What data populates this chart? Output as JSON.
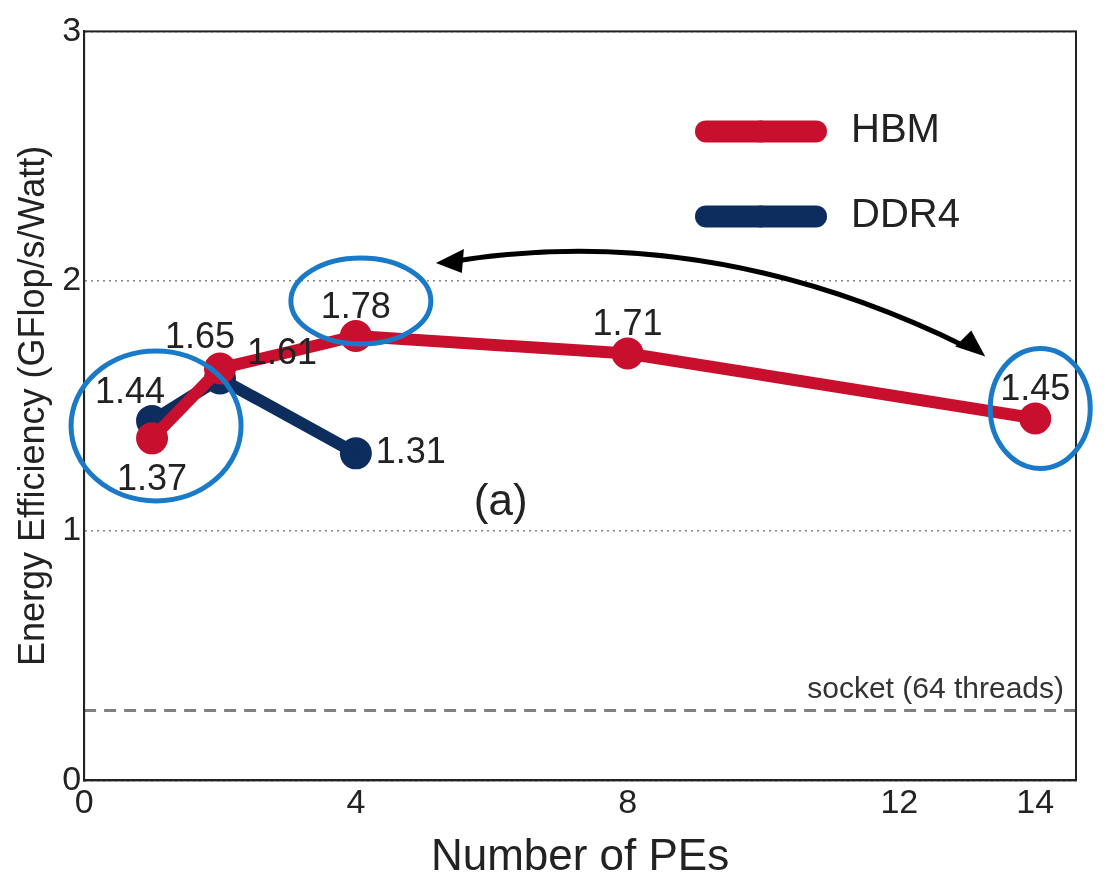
{
  "chart_data": {
    "type": "line",
    "xlabel": "Number of PEs",
    "ylabel": "Energy Efficiency (GFlop/s/Watt)",
    "xlim": [
      0,
      14.6
    ],
    "xticks": [
      0,
      4,
      8,
      12,
      14
    ],
    "ylim": [
      0,
      3
    ],
    "yticks": [
      0,
      1,
      2,
      3
    ],
    "series": [
      {
        "name": "HBM",
        "color": "#c8102e",
        "x": [
          1,
          2,
          4,
          8,
          14
        ],
        "values": [
          1.37,
          1.65,
          1.78,
          1.71,
          1.45
        ]
      },
      {
        "name": "DDR4",
        "color": "#0d2d5e",
        "x": [
          1,
          2,
          4
        ],
        "values": [
          1.44,
          1.61,
          1.31
        ]
      }
    ],
    "data_labels": true,
    "marker": "circle",
    "line_style": "solid",
    "grid": "y",
    "legend": "top right",
    "ref_lines": [
      {
        "axis": "y",
        "value": 0.28,
        "label": "socket (64 threads)",
        "color": "#808080",
        "line_style": "dashed"
      }
    ],
    "annotations": [
      "(a)"
    ]
  }
}
